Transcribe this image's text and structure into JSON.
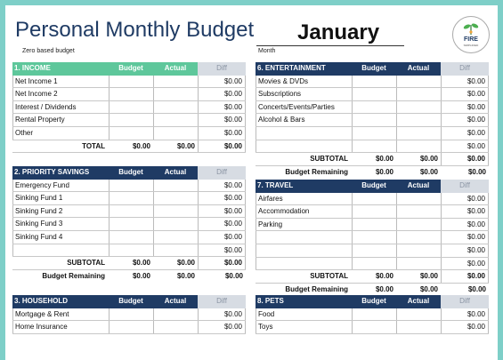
{
  "header": {
    "title": "Personal Monthly Budget",
    "subtitle": "Zero based budget",
    "month_value": "January",
    "month_label": "Month",
    "logo_text": "FIRE",
    "logo_sub": "SIMPLIFIED"
  },
  "columns": {
    "budget": "Budget",
    "actual": "Actual",
    "diff": "Diff"
  },
  "colors": {
    "green": "#5ec79b",
    "navy": "#1f3b64",
    "diff_header": "#d7dce3",
    "background": "#7ecfc8"
  },
  "sections": {
    "income": {
      "title": "1. INCOME",
      "rows": [
        {
          "label": "Net Income 1",
          "budget": "",
          "actual": "",
          "diff": "$0.00"
        },
        {
          "label": "Net Income 2",
          "budget": "",
          "actual": "",
          "diff": "$0.00"
        },
        {
          "label": "Interest / Dividends",
          "budget": "",
          "actual": "",
          "diff": "$0.00"
        },
        {
          "label": "Rental Property",
          "budget": "",
          "actual": "",
          "diff": "$0.00"
        },
        {
          "label": "Other",
          "budget": "",
          "actual": "",
          "diff": "$0.00"
        }
      ],
      "total": {
        "label": "TOTAL",
        "budget": "$0.00",
        "actual": "$0.00",
        "diff": "$0.00"
      }
    },
    "savings": {
      "title": "2. PRIORITY SAVINGS",
      "rows": [
        {
          "label": "Emergency Fund",
          "budget": "",
          "actual": "",
          "diff": "$0.00"
        },
        {
          "label": "Sinking Fund 1",
          "budget": "",
          "actual": "",
          "diff": "$0.00"
        },
        {
          "label": "Sinking Fund 2",
          "budget": "",
          "actual": "",
          "diff": "$0.00"
        },
        {
          "label": "Sinking Fund 3",
          "budget": "",
          "actual": "",
          "diff": "$0.00"
        },
        {
          "label": "Sinking Fund 4",
          "budget": "",
          "actual": "",
          "diff": "$0.00"
        },
        {
          "label": "",
          "budget": "",
          "actual": "",
          "diff": "$0.00"
        }
      ],
      "subtotal": {
        "label": "SUBTOTAL",
        "budget": "$0.00",
        "actual": "$0.00",
        "diff": "$0.00"
      },
      "remaining": {
        "label": "Budget Remaining",
        "budget": "$0.00",
        "actual": "$0.00",
        "diff": "$0.00"
      }
    },
    "household": {
      "title": "3. HOUSEHOLD",
      "rows": [
        {
          "label": "Mortgage & Rent",
          "budget": "",
          "actual": "",
          "diff": "$0.00"
        },
        {
          "label": "Home Insurance",
          "budget": "",
          "actual": "",
          "diff": "$0.00"
        }
      ]
    },
    "entertainment": {
      "title": "6. ENTERTAINMENT",
      "rows": [
        {
          "label": "Movies & DVDs",
          "budget": "",
          "actual": "",
          "diff": "$0.00"
        },
        {
          "label": "Subscriptions",
          "budget": "",
          "actual": "",
          "diff": "$0.00"
        },
        {
          "label": "Concerts/Events/Parties",
          "budget": "",
          "actual": "",
          "diff": "$0.00"
        },
        {
          "label": "Alcohol & Bars",
          "budget": "",
          "actual": "",
          "diff": "$0.00"
        },
        {
          "label": "",
          "budget": "",
          "actual": "",
          "diff": "$0.00"
        },
        {
          "label": "",
          "budget": "",
          "actual": "",
          "diff": "$0.00"
        }
      ],
      "subtotal": {
        "label": "SUBTOTAL",
        "budget": "$0.00",
        "actual": "$0.00",
        "diff": "$0.00"
      },
      "remaining": {
        "label": "Budget Remaining",
        "budget": "$0.00",
        "actual": "$0.00",
        "diff": "$0.00"
      }
    },
    "travel": {
      "title": "7. TRAVEL",
      "rows": [
        {
          "label": "Airfares",
          "budget": "",
          "actual": "",
          "diff": "$0.00"
        },
        {
          "label": "Accommodation",
          "budget": "",
          "actual": "",
          "diff": "$0.00"
        },
        {
          "label": "Parking",
          "budget": "",
          "actual": "",
          "diff": "$0.00"
        },
        {
          "label": "",
          "budget": "",
          "actual": "",
          "diff": "$0.00"
        },
        {
          "label": "",
          "budget": "",
          "actual": "",
          "diff": "$0.00"
        },
        {
          "label": "",
          "budget": "",
          "actual": "",
          "diff": "$0.00"
        }
      ],
      "subtotal": {
        "label": "SUBTOTAL",
        "budget": "$0.00",
        "actual": "$0.00",
        "diff": "$0.00"
      },
      "remaining": {
        "label": "Budget Remaining",
        "budget": "$0.00",
        "actual": "$0.00",
        "diff": "$0.00"
      }
    },
    "pets": {
      "title": "8. PETS",
      "rows": [
        {
          "label": "Food",
          "budget": "",
          "actual": "",
          "diff": "$0.00"
        },
        {
          "label": "Toys",
          "budget": "",
          "actual": "",
          "diff": "$0.00"
        }
      ]
    }
  }
}
